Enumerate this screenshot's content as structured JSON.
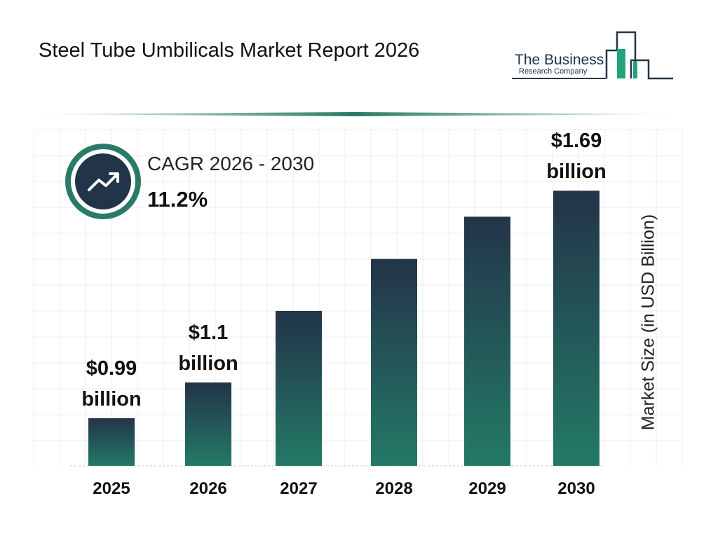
{
  "title": "Steel Tube Umbilicals Market Report 2026",
  "logo": {
    "line1": "The Business",
    "line2": "Research Company"
  },
  "cagr": {
    "label": "CAGR 2026 - 2030",
    "value": "11.2%",
    "icon": "trend-up-arrow-icon"
  },
  "colors": {
    "bar_top": "#233449",
    "bar_bottom": "#237a66",
    "accent": "#2a7a68"
  },
  "chart_data": {
    "type": "bar",
    "categories": [
      "2025",
      "2026",
      "2027",
      "2028",
      "2029",
      "2030"
    ],
    "values": [
      0.99,
      1.1,
      1.32,
      1.48,
      1.61,
      1.69
    ],
    "data_labels": [
      [
        "$0.99",
        "billion"
      ],
      [
        "$1.1",
        "billion"
      ],
      null,
      null,
      null,
      [
        "$1.69",
        "billion"
      ]
    ],
    "ylabel": "Market Size (in USD Billion)",
    "grid": true,
    "legend": "none"
  }
}
